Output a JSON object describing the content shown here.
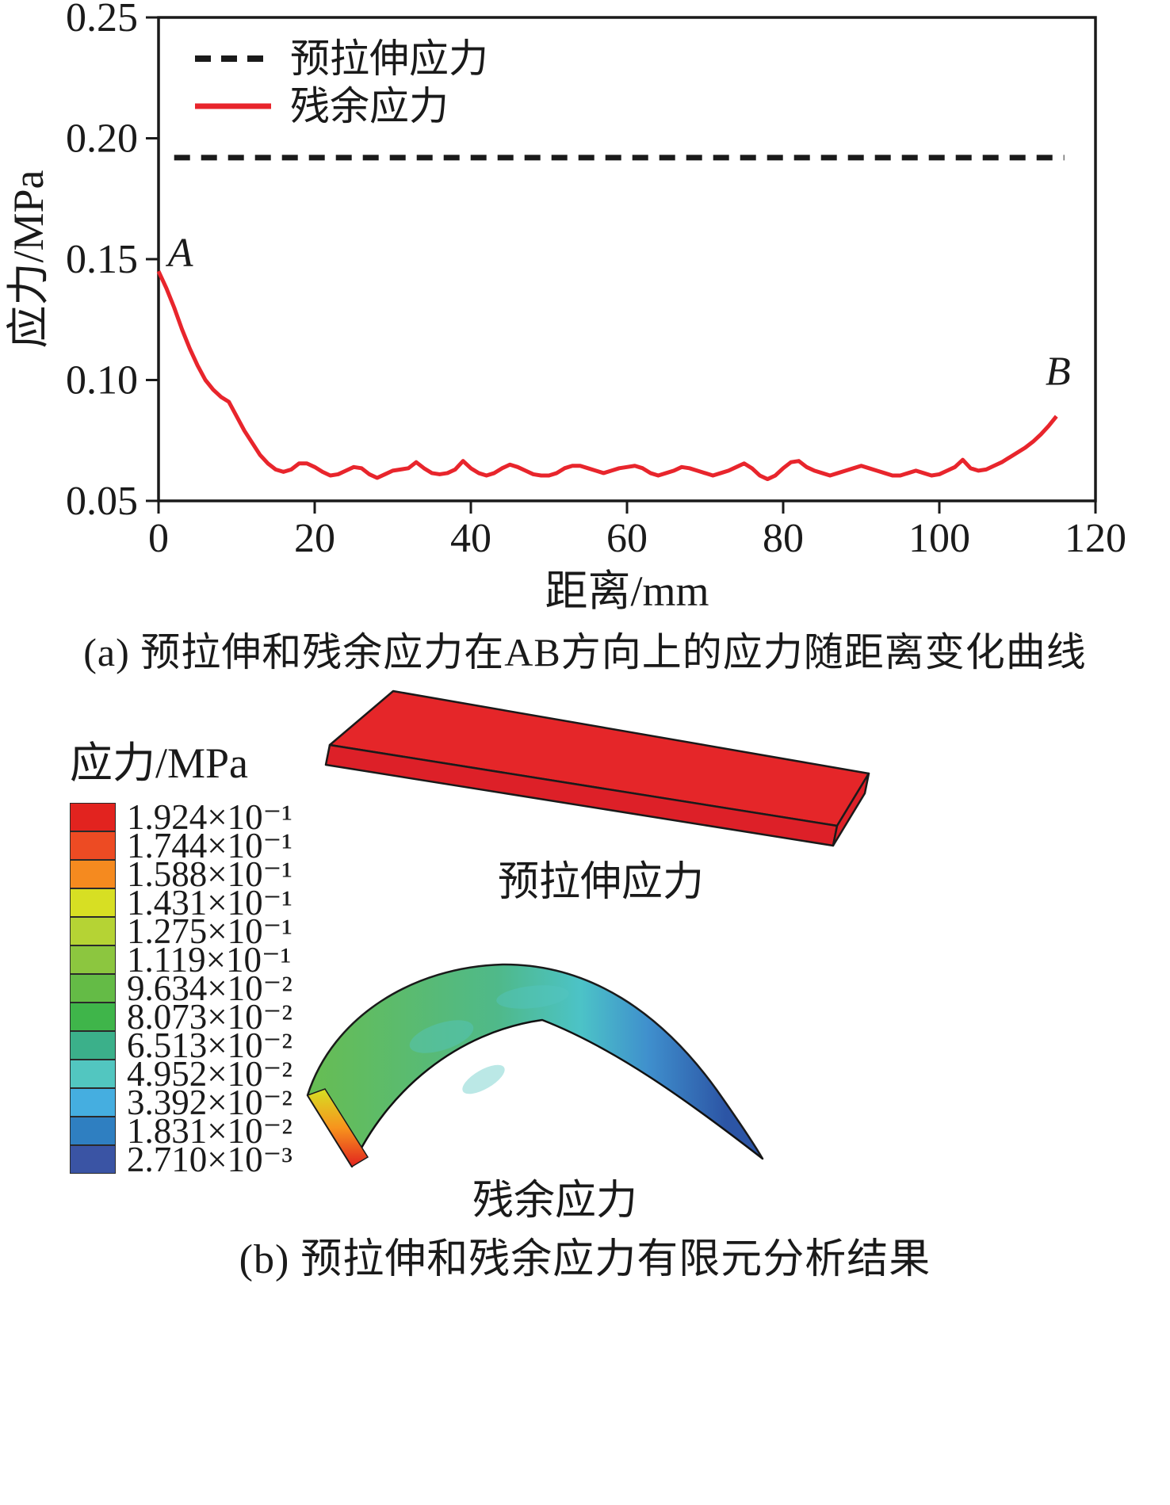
{
  "figure": {
    "panel_a": {
      "caption": "(a) 预拉伸和残余应力在AB方向上的应力随距离变化曲线"
    },
    "panel_b": {
      "caption": "(b) 预拉伸和残余应力有限元分析结果",
      "legend_title": "应力/MPa",
      "legend_entries": [
        {
          "label": "1.924×10⁻¹",
          "color": "#e2231f"
        },
        {
          "label": "1.744×10⁻¹",
          "color": "#ed4b23"
        },
        {
          "label": "1.588×10⁻¹",
          "color": "#f58a1f"
        },
        {
          "label": "1.431×10⁻¹",
          "color": "#d7df23"
        },
        {
          "label": "1.275×10⁻¹",
          "color": "#b5d334"
        },
        {
          "label": "1.119×10⁻¹",
          "color": "#8cc63f"
        },
        {
          "label": "9.634×10⁻²",
          "color": "#64bb46"
        },
        {
          "label": "8.073×10⁻²",
          "color": "#3fb54a"
        },
        {
          "label": "6.513×10⁻²",
          "color": "#3bb08a"
        },
        {
          "label": "4.952×10⁻²",
          "color": "#52c6c0"
        },
        {
          "label": "3.392×10⁻²",
          "color": "#45aee0"
        },
        {
          "label": "1.831×10⁻²",
          "color": "#2f7fc1"
        },
        {
          "label": "2.710×10⁻³",
          "color": "#3a54a4"
        }
      ],
      "slab_label": "预拉伸应力",
      "arch_label": "残余应力",
      "slab_color": "#e52629",
      "slab_side_color": "#dd2028",
      "arch_blob_color": "#55c6c1",
      "arch_gradient": [
        "#67bd52",
        "#4fb98a",
        "#4cc3c7",
        "#3f8fcd",
        "#2c55a5"
      ],
      "edge_gradient": [
        "#d7df23",
        "#f7941d",
        "#e2231f"
      ]
    }
  },
  "chart_data": {
    "type": "line",
    "title": "",
    "xlabel": "距离/mm",
    "ylabel": "应力/MPa",
    "xlim": [
      0,
      120
    ],
    "ylim": [
      0.05,
      0.25
    ],
    "xticks": [
      0,
      20,
      40,
      60,
      80,
      100,
      120
    ],
    "yticks": [
      0.05,
      0.1,
      0.15,
      0.2,
      0.25
    ],
    "grid": false,
    "legend_position": "top-left",
    "series": [
      {
        "name": "预拉伸应力",
        "style": "dashed",
        "color": "#1a1a1a",
        "x": [
          2,
          116
        ],
        "y": [
          0.192,
          0.192
        ]
      },
      {
        "name": "残余应力",
        "style": "solid",
        "color": "#e8252c",
        "x": [
          0,
          1,
          2,
          3,
          4,
          5,
          6,
          7,
          8,
          9,
          10,
          11,
          12,
          13,
          14,
          15,
          16,
          17,
          18,
          19,
          20,
          21,
          22,
          23,
          24,
          25,
          26,
          27,
          28,
          29,
          30,
          31,
          32,
          33,
          34,
          35,
          36,
          37,
          38,
          39,
          40,
          41,
          42,
          43,
          44,
          45,
          46,
          47,
          48,
          49,
          50,
          51,
          52,
          53,
          54,
          55,
          56,
          57,
          58,
          59,
          60,
          61,
          62,
          63,
          64,
          65,
          66,
          67,
          68,
          69,
          70,
          71,
          72,
          73,
          74,
          75,
          76,
          77,
          78,
          79,
          80,
          81,
          82,
          83,
          84,
          85,
          86,
          87,
          88,
          89,
          90,
          91,
          92,
          93,
          94,
          95,
          96,
          97,
          98,
          99,
          100,
          101,
          102,
          103,
          104,
          105,
          106,
          107,
          108,
          109,
          110,
          111,
          112,
          113,
          114,
          115
        ],
        "y": [
          0.145,
          0.138,
          0.13,
          0.121,
          0.113,
          0.106,
          0.1,
          0.096,
          0.093,
          0.091,
          0.085,
          0.079,
          0.074,
          0.069,
          0.0655,
          0.063,
          0.062,
          0.063,
          0.0655,
          0.0655,
          0.064,
          0.062,
          0.0605,
          0.061,
          0.0625,
          0.064,
          0.0635,
          0.061,
          0.0595,
          0.061,
          0.0625,
          0.063,
          0.0635,
          0.066,
          0.0635,
          0.0615,
          0.061,
          0.0615,
          0.063,
          0.0665,
          0.0635,
          0.0615,
          0.0605,
          0.0615,
          0.0635,
          0.065,
          0.064,
          0.0625,
          0.061,
          0.0605,
          0.0605,
          0.0615,
          0.0635,
          0.0645,
          0.0645,
          0.0635,
          0.0625,
          0.0615,
          0.0625,
          0.0635,
          0.064,
          0.0645,
          0.0635,
          0.0615,
          0.0605,
          0.0615,
          0.0625,
          0.064,
          0.0635,
          0.0625,
          0.0615,
          0.0605,
          0.0615,
          0.0625,
          0.064,
          0.0655,
          0.0635,
          0.0605,
          0.059,
          0.0605,
          0.0635,
          0.066,
          0.0665,
          0.064,
          0.0625,
          0.0615,
          0.0605,
          0.0615,
          0.0625,
          0.0635,
          0.0645,
          0.0635,
          0.0625,
          0.0615,
          0.0605,
          0.0605,
          0.0615,
          0.0625,
          0.0615,
          0.0605,
          0.061,
          0.0625,
          0.064,
          0.067,
          0.0635,
          0.0625,
          0.063,
          0.0645,
          0.066,
          0.068,
          0.07,
          0.072,
          0.0745,
          0.0775,
          0.081,
          0.085
        ]
      }
    ],
    "annotations": [
      {
        "text": "A",
        "x": 2.8,
        "y": 0.147
      },
      {
        "text": "B",
        "x": 115.2,
        "y": 0.098
      }
    ]
  }
}
